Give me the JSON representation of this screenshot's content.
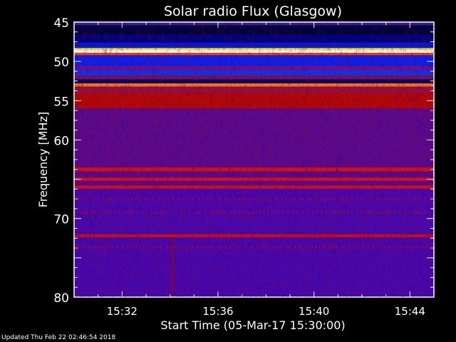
{
  "chart_data": {
    "type": "heatmap",
    "title": "Solar radio Flux (Glasgow)",
    "xlabel": "Start Time (05-Mar-17 15:30:00)",
    "ylabel": "Frequency [MHz]",
    "xlim": [
      "15:30",
      "15:45"
    ],
    "ylim": [
      45,
      80
    ],
    "y_inverted": true,
    "x_ticks": [
      "15:32",
      "15:36",
      "15:40",
      "15:44"
    ],
    "y_ticks": [
      "45",
      "50",
      "55",
      "60",
      "70",
      "80"
    ],
    "colormap": "blue-purple-red-yellow-white",
    "bands": [
      {
        "from": 45.0,
        "to": 45.4,
        "color": "#3a1aa0"
      },
      {
        "from": 45.4,
        "to": 46.6,
        "color": "#000038"
      },
      {
        "from": 46.6,
        "to": 47.6,
        "color": "#00007a"
      },
      {
        "from": 47.6,
        "to": 48.3,
        "color": "#0818c8"
      },
      {
        "from": 48.3,
        "to": 48.6,
        "color": "#f0e040"
      },
      {
        "from": 48.6,
        "to": 48.9,
        "color": "#fffff0"
      },
      {
        "from": 48.9,
        "to": 49.2,
        "color": "#f04010"
      },
      {
        "from": 49.2,
        "to": 50.6,
        "color": "#1020e0"
      },
      {
        "from": 50.6,
        "to": 51.1,
        "color": "#6a1090"
      },
      {
        "from": 51.1,
        "to": 51.8,
        "color": "#1830d8"
      },
      {
        "from": 51.8,
        "to": 52.3,
        "color": "#701060"
      },
      {
        "from": 52.3,
        "to": 52.8,
        "color": "#000060"
      },
      {
        "from": 52.8,
        "to": 53.2,
        "color": "#ff7010"
      },
      {
        "from": 53.2,
        "to": 54.0,
        "color": "#901040"
      },
      {
        "from": 54.0,
        "to": 56.0,
        "color": "#b00808"
      },
      {
        "from": 56.0,
        "to": 63.5,
        "color": "#5a0a88"
      },
      {
        "from": 63.5,
        "to": 64.0,
        "color": "#d01010"
      },
      {
        "from": 64.0,
        "to": 64.8,
        "color": "#5a0a88"
      },
      {
        "from": 64.8,
        "to": 65.2,
        "color": "#d81010"
      },
      {
        "from": 65.2,
        "to": 65.8,
        "color": "#5a0a88"
      },
      {
        "from": 65.8,
        "to": 66.2,
        "color": "#d01010"
      },
      {
        "from": 66.2,
        "to": 72.0,
        "color": "#4a08a8"
      },
      {
        "from": 72.0,
        "to": 72.4,
        "color": "#c01010"
      },
      {
        "from": 72.4,
        "to": 80.0,
        "color": "#4808a8"
      }
    ],
    "bursts": [
      {
        "time": "15:34:04",
        "from": 72.5,
        "to": 80.0,
        "color": "#a00010"
      }
    ]
  },
  "footer": {
    "updated": "Updated Thu Feb 22 02:46:54 2018"
  }
}
